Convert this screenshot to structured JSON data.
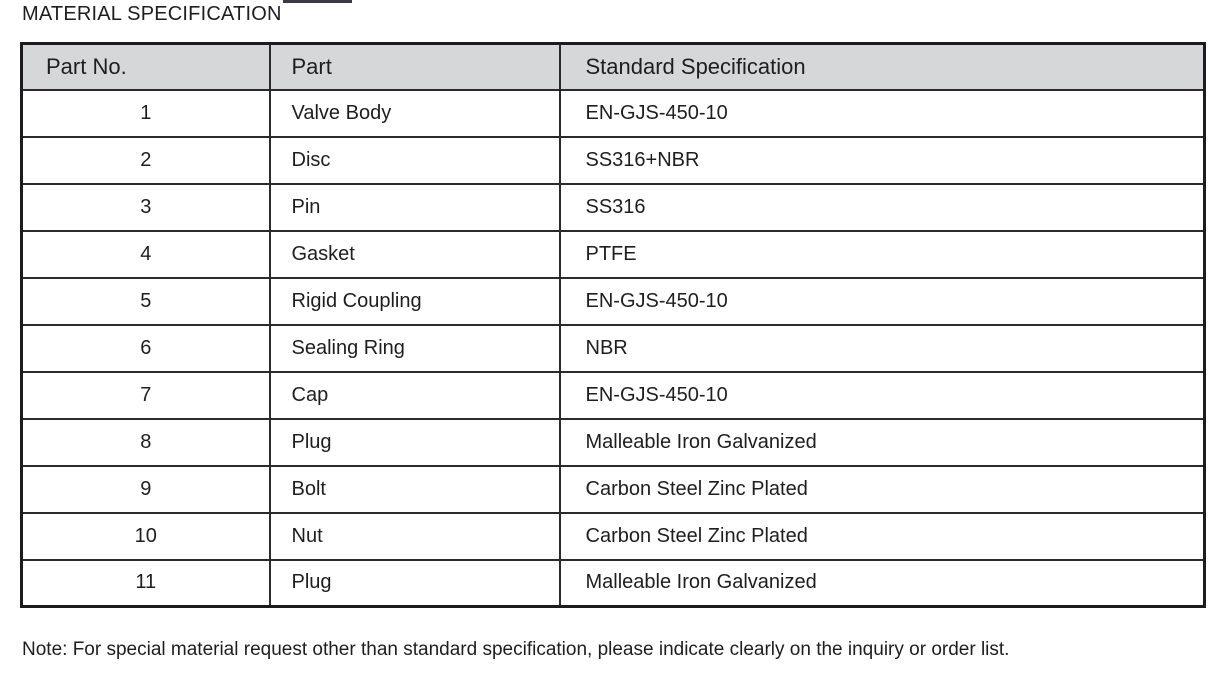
{
  "page": {
    "title": "MATERIAL SPECIFICATION",
    "note": "Note: For special material request other than standard specification, please indicate clearly on the inquiry or order list."
  },
  "colors": {
    "header_bg": "#d5d7d8",
    "border_dark": "#1c1c1f",
    "border_inner": "#2b2b2e",
    "text": "#1e1e20"
  },
  "table": {
    "columns": [
      "Part No.",
      "Part",
      "Standard Specification"
    ],
    "rows": [
      {
        "part_no": "1",
        "part": "Valve Body",
        "spec": "EN-GJS-450-10"
      },
      {
        "part_no": "2",
        "part": "Disc",
        "spec": "SS316+NBR"
      },
      {
        "part_no": "3",
        "part": "Pin",
        "spec": "SS316"
      },
      {
        "part_no": "4",
        "part": "Gasket",
        "spec": "PTFE"
      },
      {
        "part_no": "5",
        "part": "Rigid Coupling",
        "spec": "EN-GJS-450-10"
      },
      {
        "part_no": "6",
        "part": "Sealing Ring",
        "spec": "NBR"
      },
      {
        "part_no": "7",
        "part": "Cap",
        "spec": "EN-GJS-450-10"
      },
      {
        "part_no": "8",
        "part": "Plug",
        "spec": "Malleable Iron Galvanized"
      },
      {
        "part_no": "9",
        "part": "Bolt",
        "spec": "Carbon Steel Zinc Plated"
      },
      {
        "part_no": "10",
        "part": "Nut",
        "spec": "Carbon Steel Zinc Plated"
      },
      {
        "part_no": "11",
        "part": "Plug",
        "spec": "Malleable Iron Galvanized"
      }
    ]
  }
}
